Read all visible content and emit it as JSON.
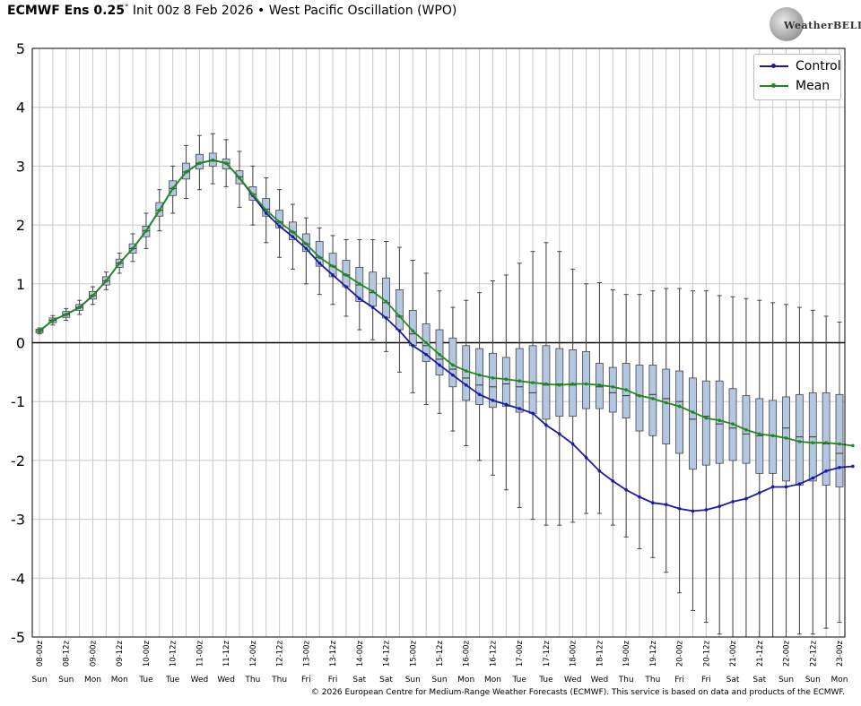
{
  "header": {
    "model": "ECMWF Ens 0.25",
    "degree": "°",
    "init": "Init 00z 8 Feb 2026",
    "bullet": "•",
    "index": "West Pacific Oscillation (WPO)"
  },
  "logo": {
    "text": "WeatherBELL",
    "icon": "weatherbell-swirl-logo"
  },
  "copyright": "© 2026 European Centre for Medium-Range Weather Forecasts (ECMWF). This service is based on data and products of the ECMWF.",
  "colors": {
    "control": "#1a1aa6",
    "mean": "#1e8a1e",
    "box_fill": "#b3c7e0",
    "box_edge": "#444444",
    "grid": "#c8c8c8",
    "zero": "#000000"
  },
  "chart_data": {
    "type": "box",
    "y_ticks": [
      5,
      4,
      3,
      2,
      1,
      0,
      -1,
      -2,
      -3,
      -4,
      -5
    ],
    "ylim": [
      -5,
      5
    ],
    "grid": true,
    "legend_position": "top-right",
    "date_labels": [
      "08-00z",
      "08-12z",
      "09-00z",
      "09-12z",
      "10-00z",
      "10-12z",
      "11-00z",
      "11-12z",
      "12-00z",
      "12-12z",
      "13-00z",
      "13-12z",
      "14-00z",
      "14-12z",
      "15-00z",
      "15-12z",
      "16-00z",
      "16-12z",
      "17-00z",
      "17-12z",
      "18-00z",
      "18-12z",
      "19-00z",
      "19-12z",
      "20-00z",
      "20-12z",
      "21-00z",
      "21-12z",
      "22-00z",
      "22-12z",
      "23-00z"
    ],
    "day_labels": [
      "Sun",
      "Sun",
      "Mon",
      "Mon",
      "Tue",
      "Tue",
      "Wed",
      "Wed",
      "Thu",
      "Thu",
      "Fri",
      "Fri",
      "Sat",
      "Sat",
      "Sun",
      "Sun",
      "Mon",
      "Mon",
      "Tue",
      "Tue",
      "Wed",
      "Wed",
      "Thu",
      "Thu",
      "Fri",
      "Fri",
      "Sat",
      "Sat",
      "Sun",
      "Sun",
      "Mon"
    ],
    "series": [
      {
        "name": "Control",
        "values": [
          0.2,
          0.38,
          0.48,
          0.6,
          0.8,
          1.05,
          1.35,
          1.6,
          1.9,
          2.25,
          2.62,
          2.9,
          3.05,
          3.1,
          3.05,
          2.8,
          2.5,
          2.2,
          1.98,
          1.8,
          1.6,
          1.35,
          1.15,
          0.95,
          0.75,
          0.6,
          0.42,
          0.2,
          -0.05,
          -0.2,
          -0.38,
          -0.55,
          -0.72,
          -0.88,
          -0.98,
          -1.05,
          -1.12,
          -1.2,
          -1.4,
          -1.55,
          -1.72,
          -1.95,
          -2.18,
          -2.35,
          -2.5,
          -2.62,
          -2.72,
          -2.75,
          -2.82,
          -2.86,
          -2.84,
          -2.78,
          -2.7,
          -2.65,
          -2.55,
          -2.45,
          -2.45,
          -2.4,
          -2.3,
          -2.18,
          -2.12,
          -2.1
        ]
      },
      {
        "name": "Mean",
        "values": [
          0.2,
          0.38,
          0.48,
          0.6,
          0.8,
          1.05,
          1.35,
          1.6,
          1.9,
          2.25,
          2.62,
          2.9,
          3.05,
          3.1,
          3.05,
          2.8,
          2.52,
          2.25,
          2.05,
          1.88,
          1.68,
          1.45,
          1.3,
          1.15,
          1.0,
          0.87,
          0.7,
          0.45,
          0.2,
          0.0,
          -0.2,
          -0.38,
          -0.48,
          -0.55,
          -0.6,
          -0.62,
          -0.65,
          -0.68,
          -0.7,
          -0.72,
          -0.7,
          -0.7,
          -0.72,
          -0.75,
          -0.8,
          -0.9,
          -0.95,
          -1.02,
          -1.08,
          -1.18,
          -1.28,
          -1.32,
          -1.38,
          -1.48,
          -1.55,
          -1.58,
          -1.62,
          -1.68,
          -1.7,
          -1.7,
          -1.72,
          -1.75
        ]
      }
    ],
    "boxes": [
      {
        "q1": 0.17,
        "med": 0.2,
        "q3": 0.23,
        "min": 0.15,
        "max": 0.25
      },
      {
        "q1": 0.34,
        "med": 0.38,
        "q3": 0.42,
        "min": 0.3,
        "max": 0.46
      },
      {
        "q1": 0.43,
        "med": 0.48,
        "q3": 0.53,
        "min": 0.38,
        "max": 0.58
      },
      {
        "q1": 0.55,
        "med": 0.6,
        "q3": 0.65,
        "min": 0.48,
        "max": 0.72
      },
      {
        "q1": 0.74,
        "med": 0.8,
        "q3": 0.87,
        "min": 0.65,
        "max": 0.95
      },
      {
        "q1": 0.98,
        "med": 1.05,
        "q3": 1.12,
        "min": 0.9,
        "max": 1.2
      },
      {
        "q1": 1.28,
        "med": 1.35,
        "q3": 1.42,
        "min": 1.18,
        "max": 1.52
      },
      {
        "q1": 1.52,
        "med": 1.6,
        "q3": 1.68,
        "min": 1.38,
        "max": 1.85
      },
      {
        "q1": 1.8,
        "med": 1.9,
        "q3": 1.98,
        "min": 1.6,
        "max": 2.2
      },
      {
        "q1": 2.15,
        "med": 2.25,
        "q3": 2.38,
        "min": 1.9,
        "max": 2.6
      },
      {
        "q1": 2.5,
        "med": 2.62,
        "q3": 2.75,
        "min": 2.2,
        "max": 3.0
      },
      {
        "q1": 2.78,
        "med": 2.9,
        "q3": 3.05,
        "min": 2.45,
        "max": 3.35
      },
      {
        "q1": 2.95,
        "med": 3.05,
        "q3": 3.2,
        "min": 2.6,
        "max": 3.52
      },
      {
        "q1": 3.0,
        "med": 3.1,
        "q3": 3.22,
        "min": 2.7,
        "max": 3.55
      },
      {
        "q1": 2.95,
        "med": 3.05,
        "q3": 3.12,
        "min": 2.65,
        "max": 3.45
      },
      {
        "q1": 2.7,
        "med": 2.82,
        "q3": 2.92,
        "min": 2.3,
        "max": 3.25
      },
      {
        "q1": 2.42,
        "med": 2.52,
        "q3": 2.65,
        "min": 2.0,
        "max": 3.0
      },
      {
        "q1": 2.15,
        "med": 2.27,
        "q3": 2.45,
        "min": 1.7,
        "max": 2.8
      },
      {
        "q1": 1.95,
        "med": 2.05,
        "q3": 2.25,
        "min": 1.45,
        "max": 2.6
      },
      {
        "q1": 1.75,
        "med": 1.88,
        "q3": 2.05,
        "min": 1.25,
        "max": 2.35
      },
      {
        "q1": 1.55,
        "med": 1.68,
        "q3": 1.85,
        "min": 1.0,
        "max": 2.12
      },
      {
        "q1": 1.3,
        "med": 1.45,
        "q3": 1.72,
        "min": 0.82,
        "max": 1.95
      },
      {
        "q1": 1.12,
        "med": 1.3,
        "q3": 1.52,
        "min": 0.65,
        "max": 1.82
      },
      {
        "q1": 0.95,
        "med": 1.15,
        "q3": 1.4,
        "min": 0.45,
        "max": 1.75
      },
      {
        "q1": 0.7,
        "med": 0.98,
        "q3": 1.28,
        "min": 0.22,
        "max": 1.75
      },
      {
        "q1": 0.62,
        "med": 0.85,
        "q3": 1.2,
        "min": 0.05,
        "max": 1.75
      },
      {
        "q1": 0.42,
        "med": 0.68,
        "q3": 1.1,
        "min": -0.15,
        "max": 1.72
      },
      {
        "q1": 0.22,
        "med": 0.45,
        "q3": 0.9,
        "min": -0.5,
        "max": 1.62
      },
      {
        "q1": -0.05,
        "med": 0.15,
        "q3": 0.55,
        "min": -0.85,
        "max": 1.4
      },
      {
        "q1": -0.32,
        "med": -0.05,
        "q3": 0.32,
        "min": -1.05,
        "max": 1.18
      },
      {
        "q1": -0.55,
        "med": -0.28,
        "q3": 0.22,
        "min": -1.2,
        "max": 0.88
      },
      {
        "q1": -0.75,
        "med": -0.45,
        "q3": 0.08,
        "min": -1.5,
        "max": 0.6
      },
      {
        "q1": -0.98,
        "med": -0.6,
        "q3": -0.05,
        "min": -1.75,
        "max": 0.72
      },
      {
        "q1": -1.05,
        "med": -0.72,
        "q3": -0.1,
        "min": -2.0,
        "max": 0.85
      },
      {
        "q1": -1.1,
        "med": -0.75,
        "q3": -0.18,
        "min": -2.25,
        "max": 1.05
      },
      {
        "q1": -1.08,
        "med": -0.7,
        "q3": -0.25,
        "min": -2.5,
        "max": 1.15
      },
      {
        "q1": -1.18,
        "med": -0.75,
        "q3": -0.1,
        "min": -2.8,
        "max": 1.35
      },
      {
        "q1": -1.2,
        "med": -0.85,
        "q3": -0.05,
        "min": -3.0,
        "max": 1.55
      },
      {
        "q1": -1.3,
        "med": -0.72,
        "q3": -0.05,
        "min": -3.1,
        "max": 1.7
      },
      {
        "q1": -1.25,
        "med": -0.7,
        "q3": -0.1,
        "min": -3.1,
        "max": 1.55
      },
      {
        "q1": -1.25,
        "med": -0.72,
        "q3": -0.12,
        "min": -3.05,
        "max": 1.25
      },
      {
        "q1": -1.12,
        "med": -0.7,
        "q3": -0.15,
        "min": -2.9,
        "max": 1.0
      },
      {
        "q1": -1.12,
        "med": -0.75,
        "q3": -0.35,
        "min": -2.9,
        "max": 1.02
      },
      {
        "q1": -1.18,
        "med": -0.85,
        "q3": -0.42,
        "min": -3.1,
        "max": 0.9
      },
      {
        "q1": -1.28,
        "med": -0.9,
        "q3": -0.35,
        "min": -3.3,
        "max": 0.82
      },
      {
        "q1": -1.5,
        "med": -0.9,
        "q3": -0.38,
        "min": -3.5,
        "max": 0.82
      },
      {
        "q1": -1.58,
        "med": -0.88,
        "q3": -0.38,
        "min": -3.65,
        "max": 0.88
      },
      {
        "q1": -1.72,
        "med": -0.95,
        "q3": -0.45,
        "min": -3.9,
        "max": 0.92
      },
      {
        "q1": -1.88,
        "med": -1.0,
        "q3": -0.48,
        "min": -4.25,
        "max": 0.92
      },
      {
        "q1": -2.15,
        "med": -1.3,
        "q3": -0.6,
        "min": -4.55,
        "max": 0.88
      },
      {
        "q1": -2.08,
        "med": -1.25,
        "q3": -0.65,
        "min": -4.75,
        "max": 0.88
      },
      {
        "q1": -2.05,
        "med": -1.38,
        "q3": -0.65,
        "min": -4.95,
        "max": 0.8
      },
      {
        "q1": -2.0,
        "med": -1.45,
        "q3": -0.78,
        "min": -5.0,
        "max": 0.78
      },
      {
        "q1": -2.05,
        "med": -1.55,
        "q3": -0.9,
        "min": -5.0,
        "max": 0.75
      },
      {
        "q1": -2.22,
        "med": -1.58,
        "q3": -0.95,
        "min": -5.0,
        "max": 0.72
      },
      {
        "q1": -2.22,
        "med": -1.58,
        "q3": -0.98,
        "min": -5.0,
        "max": 0.68
      },
      {
        "q1": -2.35,
        "med": -1.45,
        "q3": -0.92,
        "min": -5.0,
        "max": 0.65
      },
      {
        "q1": -2.42,
        "med": -1.6,
        "q3": -0.88,
        "min": -4.95,
        "max": 0.6
      },
      {
        "q1": -2.35,
        "med": -1.6,
        "q3": -0.85,
        "min": -4.95,
        "max": 0.55
      },
      {
        "q1": -2.42,
        "med": -1.72,
        "q3": -0.85,
        "min": -4.85,
        "max": 0.45
      },
      {
        "q1": -2.45,
        "med": -1.88,
        "q3": -0.88,
        "min": -4.75,
        "max": 0.35
      }
    ]
  }
}
